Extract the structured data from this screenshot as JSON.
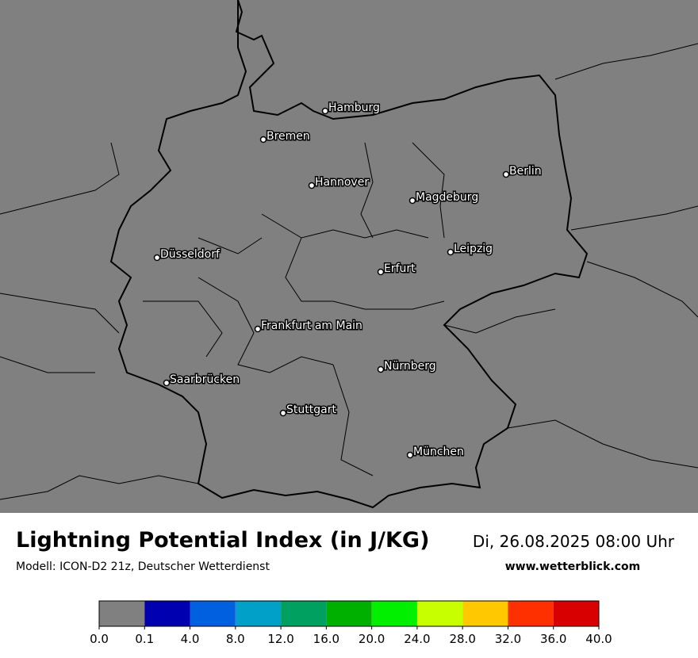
{
  "header": {
    "title": "Lightning Potential Index (in J/KG)",
    "subtitle": "Modell: ICON-D2 21z, Deutscher Wetterdienst",
    "date": "Di, 26.08.2025 08:00 Uhr",
    "website": "www.wetterblick.com"
  },
  "map": {
    "cities": [
      "Hamburg",
      "Bremen",
      "Berlin",
      "Hannover",
      "Magdeburg",
      "Düsseldorf",
      "Leipzig",
      "Erfurt",
      "Frankfurt am Main",
      "Nürnberg",
      "Saarbrücken",
      "Stuttgart",
      "München"
    ],
    "background": "#808080"
  },
  "colorbar": {
    "colors": [
      "#808080",
      "#0000b0",
      "#0060e0",
      "#00a0c8",
      "#00a060",
      "#00b000",
      "#00f000",
      "#c8ff00",
      "#ffc800",
      "#ff3000",
      "#d80000"
    ],
    "ticks": [
      {
        "value": 0,
        "label": "0.0"
      },
      {
        "value": 0.1,
        "label": "0.1"
      },
      {
        "value": 4,
        "label": "4.0"
      },
      {
        "value": 8,
        "label": "8.0"
      },
      {
        "value": 12,
        "label": "12.0"
      },
      {
        "value": 16,
        "label": "16.0"
      },
      {
        "value": 20,
        "label": "20.0"
      },
      {
        "value": 24,
        "label": "24.0"
      },
      {
        "value": 28,
        "label": "28.0"
      },
      {
        "value": 32,
        "label": "32.0"
      },
      {
        "value": 36,
        "label": "36.0"
      },
      {
        "value": 40,
        "label": "40.0"
      }
    ]
  }
}
